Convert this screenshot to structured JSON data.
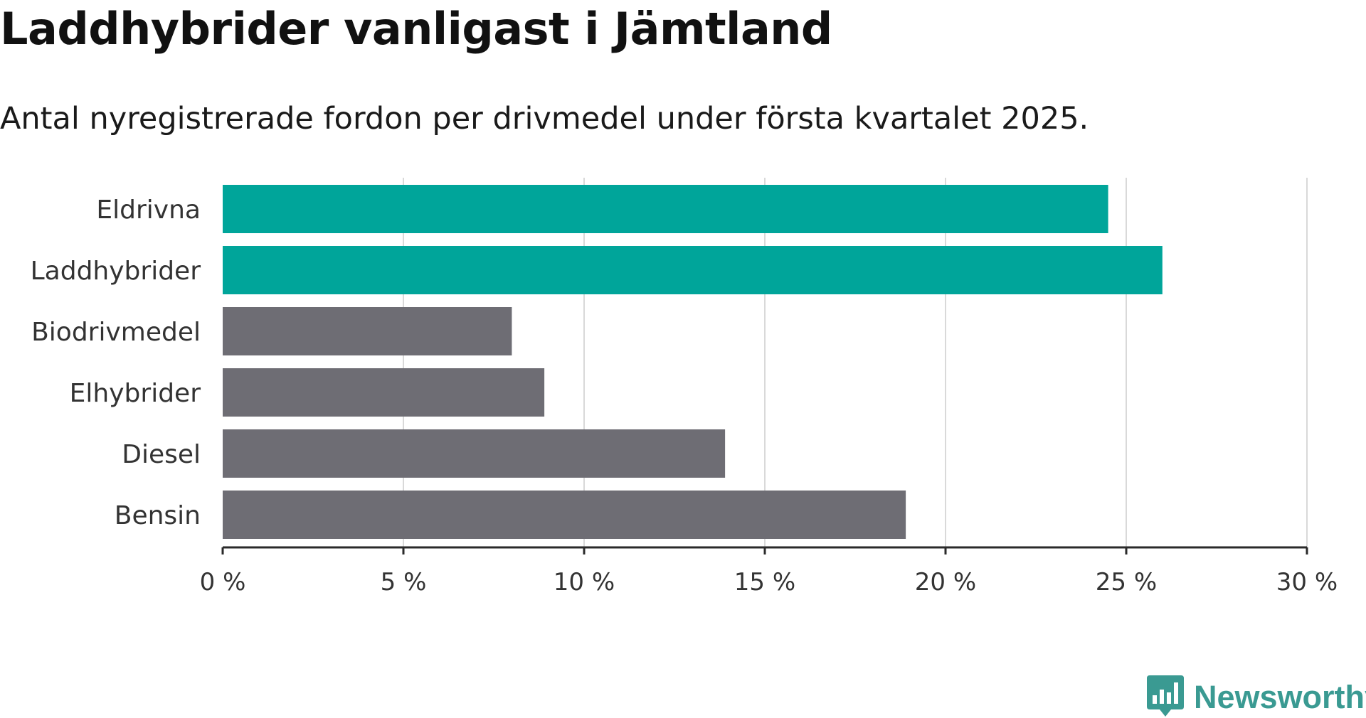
{
  "header": {
    "title": "Laddhybrider vanligast i Jämtland",
    "subtitle": "Antal nyregistrerade fordon per drivmedel under första kvartalet 2025."
  },
  "brand": {
    "name": "Newsworthy",
    "color": "#3a9a92"
  },
  "chart_data": {
    "type": "bar",
    "orientation": "horizontal",
    "categories": [
      "Eldrivna",
      "Laddhybrider",
      "Biodrivmedel",
      "Elhybrider",
      "Diesel",
      "Bensin"
    ],
    "values": [
      24.5,
      26.0,
      8.0,
      8.9,
      13.9,
      18.9
    ],
    "highlight": [
      true,
      true,
      false,
      false,
      false,
      false
    ],
    "colors": {
      "highlight": "#00a59a",
      "default": "#6e6d74"
    },
    "xlim": [
      0,
      30
    ],
    "xticks": [
      0,
      5,
      10,
      15,
      20,
      25,
      30
    ],
    "tick_suffix": " %",
    "grid": true
  }
}
